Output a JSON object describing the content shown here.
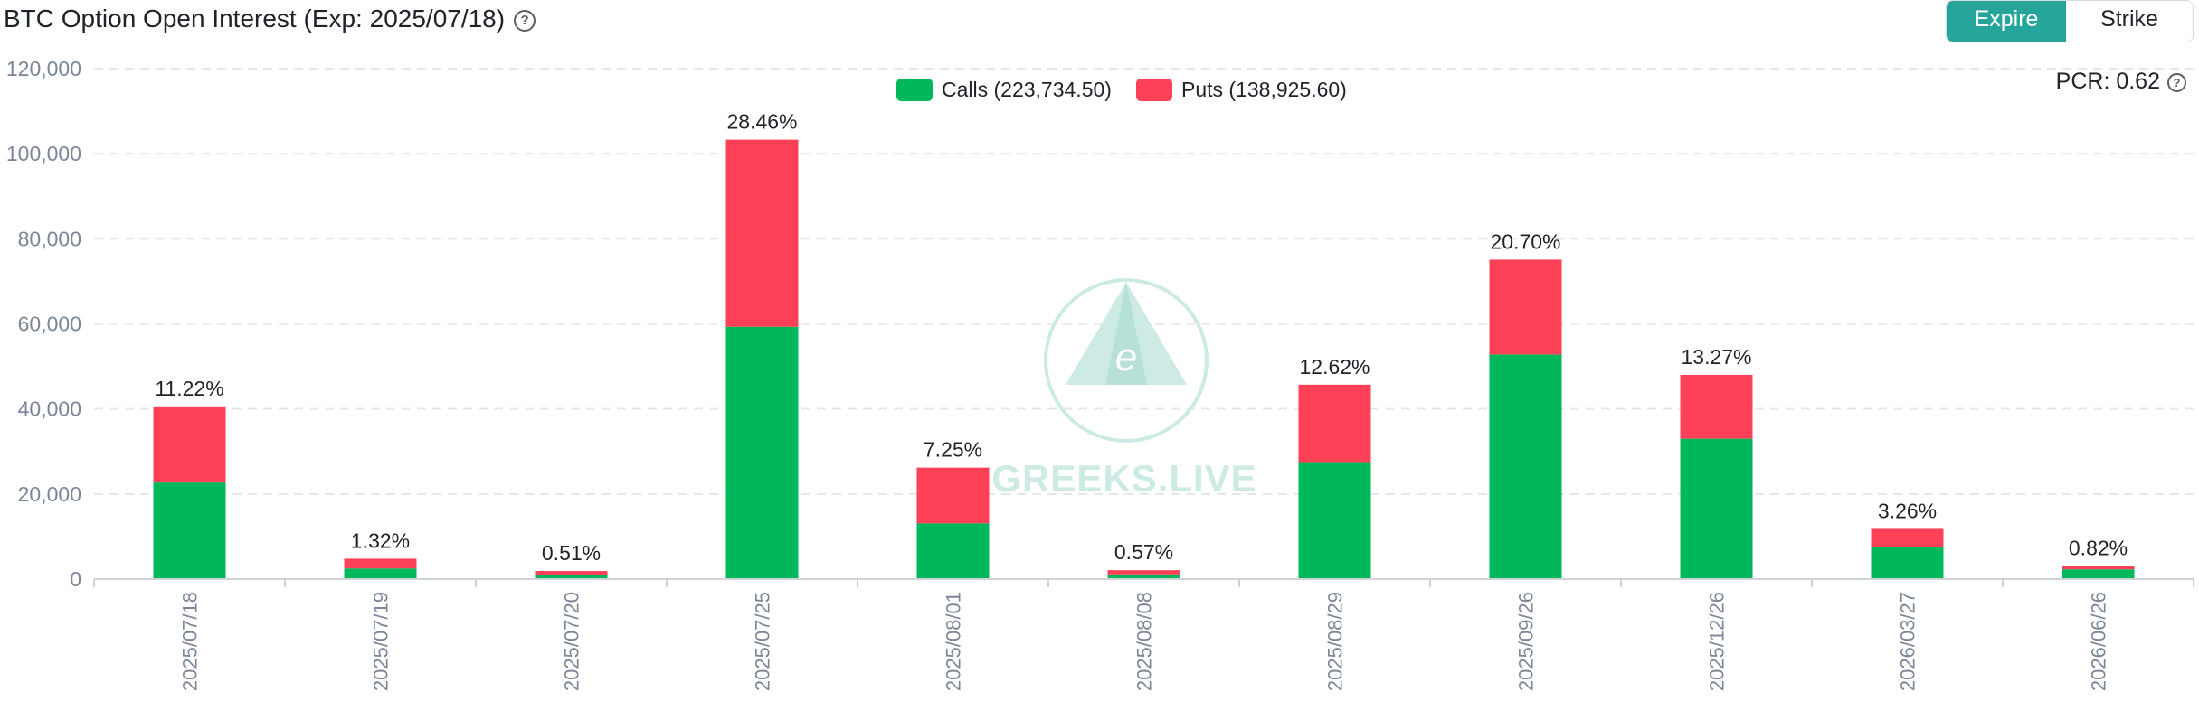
{
  "header": {
    "title": "BTC Option Open Interest (Exp: 2025/07/18)",
    "help_glyph": "?",
    "toggle": {
      "expire_label": "Expire",
      "strike_label": "Strike",
      "active": "Expire"
    }
  },
  "pcr": {
    "label": "PCR: 0.62",
    "help_glyph": "?"
  },
  "watermark": {
    "text": "GREEKS.LIVE",
    "letter": "e"
  },
  "colors": {
    "calls": "#00b85c",
    "puts": "#ff4158",
    "grid": "#e3e6ea",
    "accent": "#26a69a"
  },
  "chart_data": {
    "type": "bar",
    "stacked": true,
    "categories": [
      "2025/07/18",
      "2025/07/19",
      "2025/07/20",
      "2025/07/25",
      "2025/08/01",
      "2025/08/08",
      "2025/08/29",
      "2025/09/26",
      "2025/12/26",
      "2026/03/27",
      "2026/06/26"
    ],
    "series": [
      {
        "name": "Calls (223,734.50)",
        "values": [
          22700,
          2500,
          1000,
          59300,
          13100,
          1100,
          27500,
          52800,
          33000,
          7500,
          2300
        ]
      },
      {
        "name": "Puts (138,925.60)",
        "values": [
          17900,
          2300,
          900,
          44000,
          13100,
          1000,
          18200,
          22300,
          15000,
          4300,
          800
        ]
      }
    ],
    "bar_labels": [
      "11.22%",
      "1.32%",
      "0.51%",
      "28.46%",
      "7.25%",
      "0.57%",
      "12.62%",
      "20.70%",
      "13.27%",
      "3.26%",
      "0.82%"
    ],
    "yticks": [
      0,
      20000,
      40000,
      60000,
      80000,
      100000,
      120000
    ],
    "ytick_labels": [
      "0",
      "20,000",
      "40,000",
      "60,000",
      "80,000",
      "100,000",
      "120,000"
    ],
    "ylim": [
      0,
      120000
    ],
    "grid": true,
    "legend_position": "top-center"
  }
}
